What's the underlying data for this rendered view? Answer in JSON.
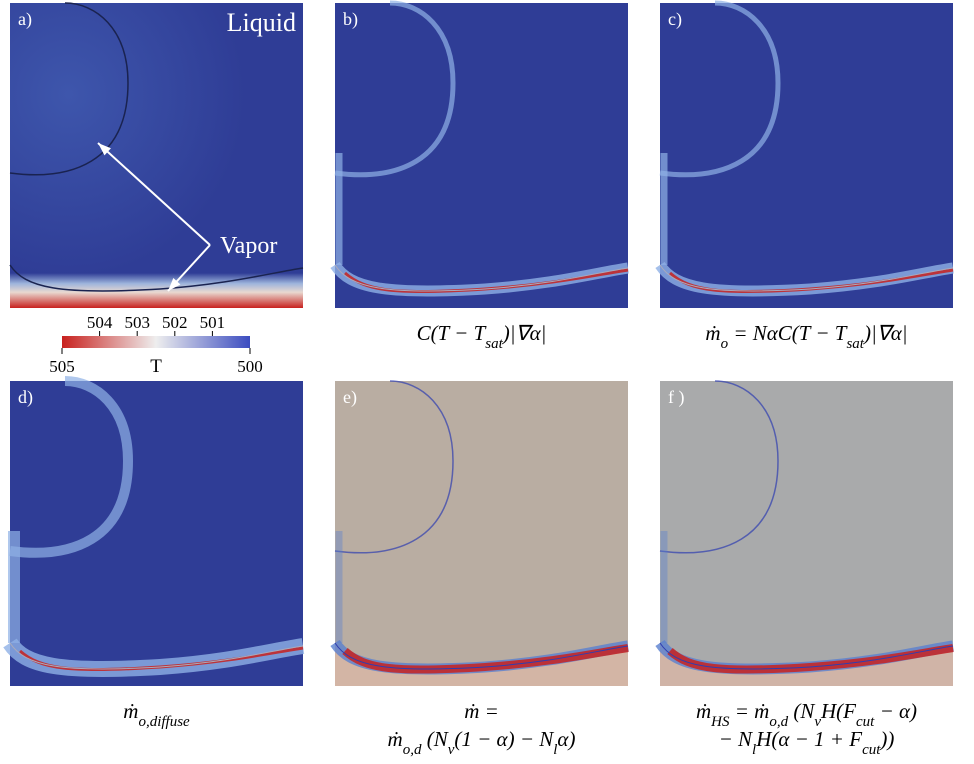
{
  "panels": [
    {
      "label": "a)",
      "annotations": {
        "liquid": "Liquid",
        "vapor": "Vapor"
      }
    },
    {
      "label": "b)",
      "caption": [
        [
          {
            "text": "C(T − T"
          },
          {
            "text": "sat",
            "sub": true
          },
          {
            "text": ")|∇α|"
          }
        ]
      ]
    },
    {
      "label": "c)",
      "caption": [
        [
          {
            "text": "ṁ"
          },
          {
            "text": "o",
            "sub": true
          },
          {
            "text": " = NαC(T − T"
          },
          {
            "text": "sat",
            "sub": true
          },
          {
            "text": ")|∇α|"
          }
        ]
      ]
    },
    {
      "label": "d)",
      "caption": [
        [
          {
            "text": "ṁ"
          },
          {
            "text": "o,diffuse",
            "sub": true
          }
        ]
      ]
    },
    {
      "label": "e)",
      "caption": [
        [
          {
            "text": "ṁ ="
          }
        ],
        [
          {
            "text": "ṁ"
          },
          {
            "text": "o,d",
            "sub": true
          },
          {
            "text": " (N"
          },
          {
            "text": "v",
            "sub": true
          },
          {
            "text": "(1 − α) − N"
          },
          {
            "text": "l",
            "sub": true
          },
          {
            "text": "α)"
          }
        ]
      ]
    },
    {
      "label": "f )",
      "caption": [
        [
          {
            "text": "ṁ"
          },
          {
            "text": "HS",
            "sub": true
          },
          {
            "text": " = ṁ"
          },
          {
            "text": "o,d",
            "sub": true
          },
          {
            "text": " (N"
          },
          {
            "text": "v",
            "sub": true
          },
          {
            "text": "H(F"
          },
          {
            "text": "cut",
            "sub": true
          },
          {
            "text": " − α)"
          }
        ],
        [
          {
            "text": "− N"
          },
          {
            "text": "l",
            "sub": true
          },
          {
            "text": "H(α − 1 + F"
          },
          {
            "text": "cut",
            "sub": true
          },
          {
            "text": "))"
          }
        ]
      ]
    }
  ],
  "colorbar": {
    "label": "T",
    "range": [
      505,
      500
    ],
    "end_ticks": [
      505,
      500
    ],
    "inner_ticks": [
      504,
      503,
      502,
      501
    ]
  }
}
